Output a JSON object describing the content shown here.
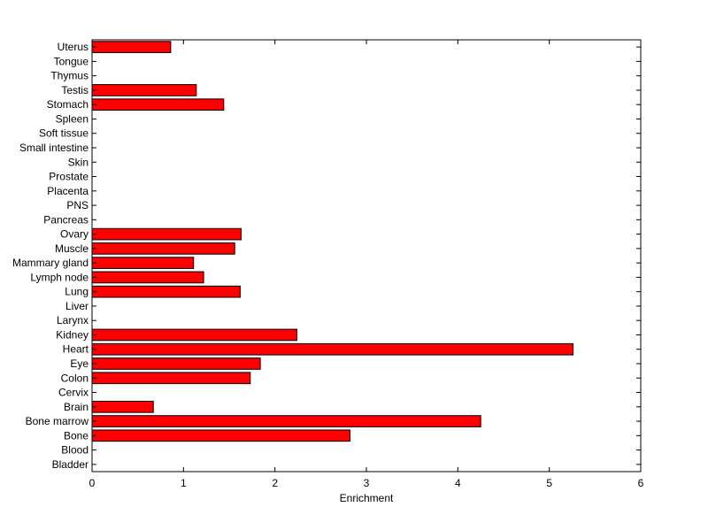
{
  "chart_data": {
    "type": "bar",
    "orientation": "horizontal",
    "title": "",
    "xlabel": "Enrichment",
    "ylabel": "",
    "xlim": [
      0,
      6
    ],
    "xticks": [
      "0",
      "1",
      "2",
      "3",
      "4",
      "5",
      "6"
    ],
    "grid": false,
    "legend": "none",
    "bar_color": "#ff0000",
    "bar_edge_color": "#000000",
    "categories": [
      "Bladder",
      "Blood",
      "Bone",
      "Bone marrow",
      "Brain",
      "Cervix",
      "Colon",
      "Eye",
      "Heart",
      "Kidney",
      "Larynx",
      "Liver",
      "Lung",
      "Lymph node",
      "Mammary gland",
      "Muscle",
      "Ovary",
      "Pancreas",
      "PNS",
      "Placenta",
      "Prostate",
      "Skin",
      "Small intestine",
      "Soft tissue",
      "Spleen",
      "Stomach",
      "Testis",
      "Thymus",
      "Tongue",
      "Uterus"
    ],
    "values": [
      0,
      0,
      2.82,
      4.25,
      0.67,
      0,
      1.73,
      1.84,
      5.26,
      2.24,
      0,
      0,
      1.62,
      1.22,
      1.11,
      1.56,
      1.63,
      0,
      0,
      0,
      0,
      0,
      0,
      0,
      0,
      1.44,
      1.14,
      0,
      0,
      0.86
    ]
  }
}
